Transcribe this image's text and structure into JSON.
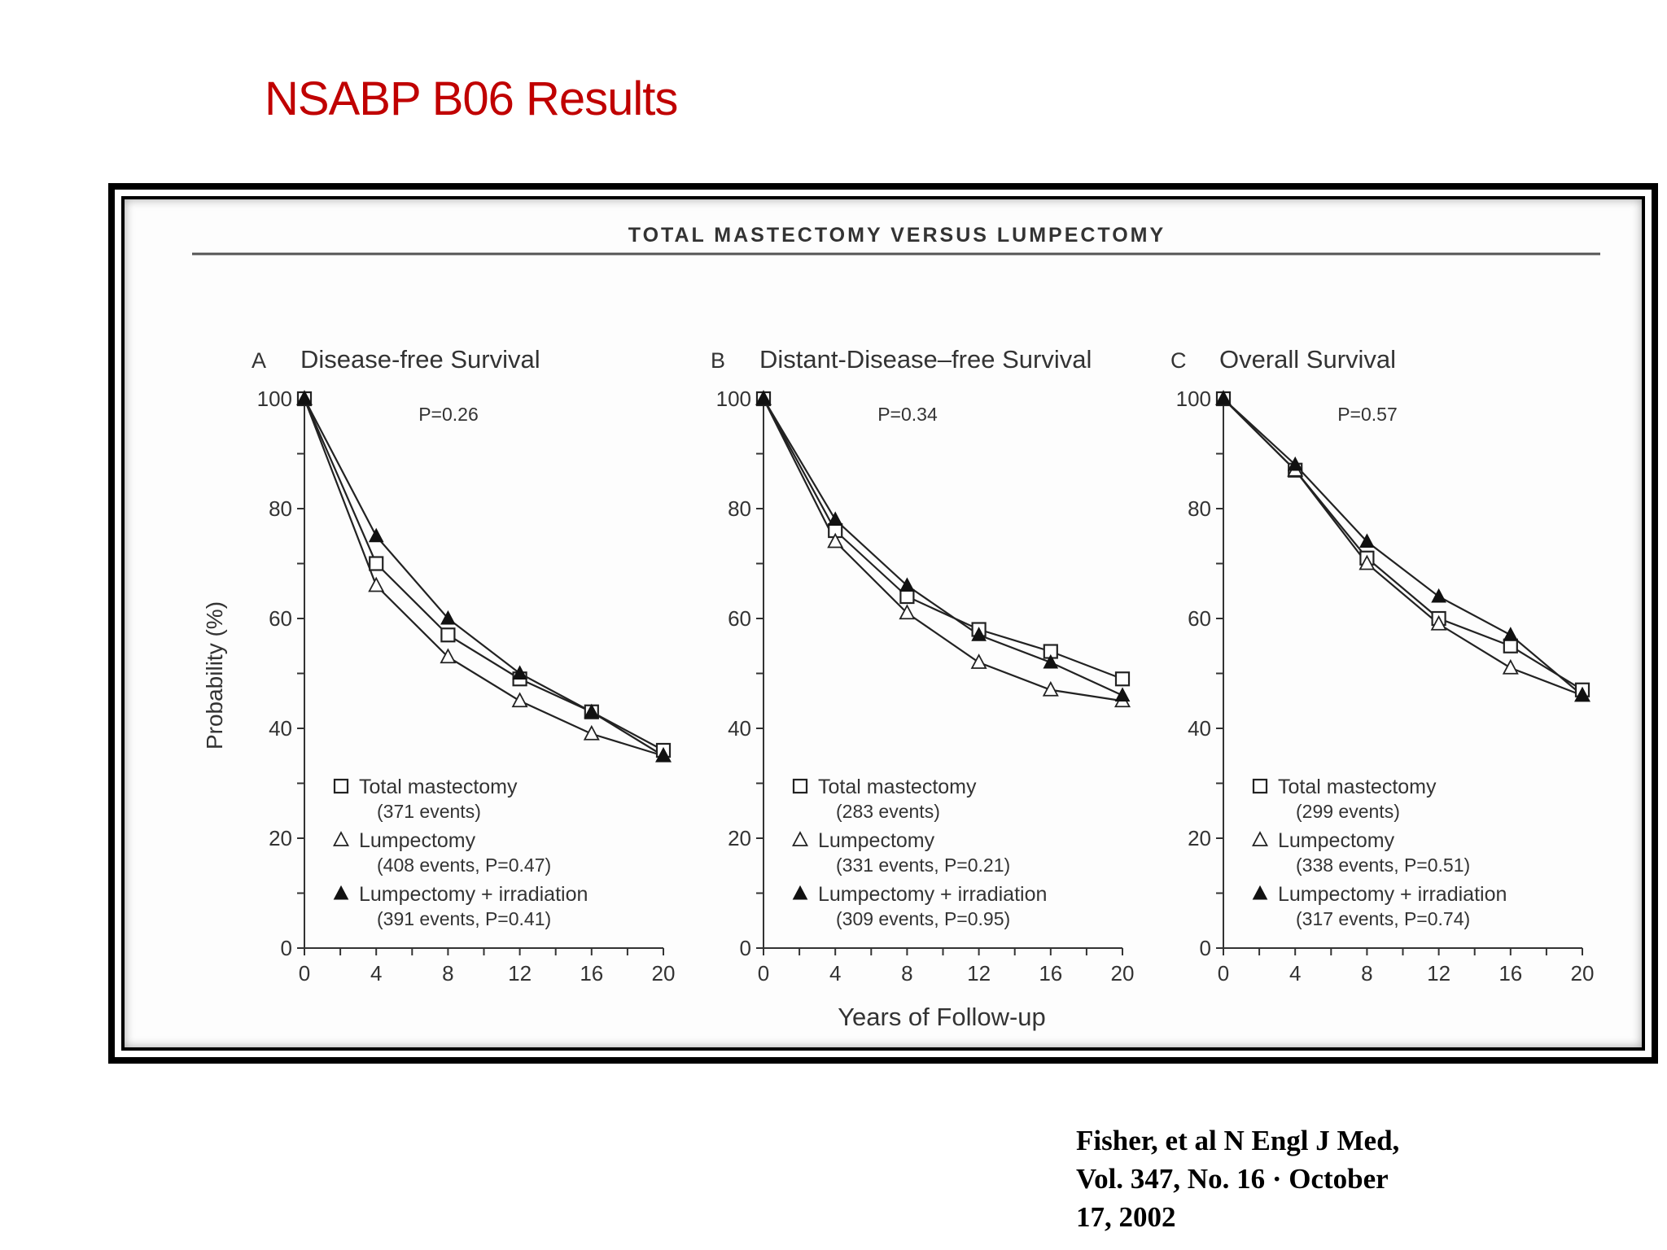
{
  "slide_title": "NSABP B06 Results",
  "figure": {
    "header": "TOTAL MASTECTOMY VERSUS LUMPECTOMY",
    "ylabel": "Probability (%)",
    "xlabel": "Years of Follow-up"
  },
  "citation": {
    "line1": "Fisher, et al N Engl J Med,",
    "line2": "Vol. 347, No. 16 · October",
    "line3": "17, 2002"
  },
  "chart_data": [
    {
      "type": "line",
      "panel_letter": "A",
      "title": "Disease-free Survival",
      "p_value_label": "P=0.26",
      "x": [
        0,
        4,
        8,
        12,
        16,
        20
      ],
      "xlim": [
        0,
        20
      ],
      "ylim": [
        0,
        100
      ],
      "xticks": [
        "0",
        "4",
        "8",
        "12",
        "16",
        "20"
      ],
      "yticks": [
        "0",
        "20",
        "40",
        "60",
        "80",
        "100"
      ],
      "series": [
        {
          "name": "Total mastectomy",
          "detail": "(371 events)",
          "marker": "open-square",
          "values": [
            100,
            70,
            57,
            49,
            43,
            36
          ]
        },
        {
          "name": "Lumpectomy",
          "detail": "(408 events, P=0.47)",
          "marker": "open-triangle",
          "values": [
            100,
            66,
            53,
            45,
            39,
            35
          ]
        },
        {
          "name": "Lumpectomy + irradiation",
          "detail": "(391 events, P=0.41)",
          "marker": "filled-triangle",
          "values": [
            100,
            75,
            60,
            50,
            43,
            35
          ]
        }
      ]
    },
    {
      "type": "line",
      "panel_letter": "B",
      "title": "Distant-Disease–free Survival",
      "p_value_label": "P=0.34",
      "x": [
        0,
        4,
        8,
        12,
        16,
        20
      ],
      "xlim": [
        0,
        20
      ],
      "ylim": [
        0,
        100
      ],
      "xticks": [
        "0",
        "4",
        "8",
        "12",
        "16",
        "20"
      ],
      "yticks": [
        "0",
        "20",
        "40",
        "60",
        "80",
        "100"
      ],
      "series": [
        {
          "name": "Total mastectomy",
          "detail": "(283 events)",
          "marker": "open-square",
          "values": [
            100,
            76,
            64,
            58,
            54,
            49
          ]
        },
        {
          "name": "Lumpectomy",
          "detail": "(331 events, P=0.21)",
          "marker": "open-triangle",
          "values": [
            100,
            74,
            61,
            52,
            47,
            45
          ]
        },
        {
          "name": "Lumpectomy + irradiation",
          "detail": "(309 events, P=0.95)",
          "marker": "filled-triangle",
          "values": [
            100,
            78,
            66,
            57,
            52,
            46
          ]
        }
      ]
    },
    {
      "type": "line",
      "panel_letter": "C",
      "title": "Overall Survival",
      "p_value_label": "P=0.57",
      "x": [
        0,
        4,
        8,
        12,
        16,
        20
      ],
      "xlim": [
        0,
        20
      ],
      "ylim": [
        0,
        100
      ],
      "xticks": [
        "0",
        "4",
        "8",
        "12",
        "16",
        "20"
      ],
      "yticks": [
        "0",
        "20",
        "40",
        "60",
        "80",
        "100"
      ],
      "series": [
        {
          "name": "Total mastectomy",
          "detail": "(299 events)",
          "marker": "open-square",
          "values": [
            100,
            87,
            71,
            60,
            55,
            47
          ]
        },
        {
          "name": "Lumpectomy",
          "detail": "(338 events, P=0.51)",
          "marker": "open-triangle",
          "values": [
            100,
            87,
            70,
            59,
            51,
            46
          ]
        },
        {
          "name": "Lumpectomy + irradiation",
          "detail": "(317 events, P=0.74)",
          "marker": "filled-triangle",
          "values": [
            100,
            88,
            74,
            64,
            57,
            46
          ]
        }
      ]
    }
  ]
}
